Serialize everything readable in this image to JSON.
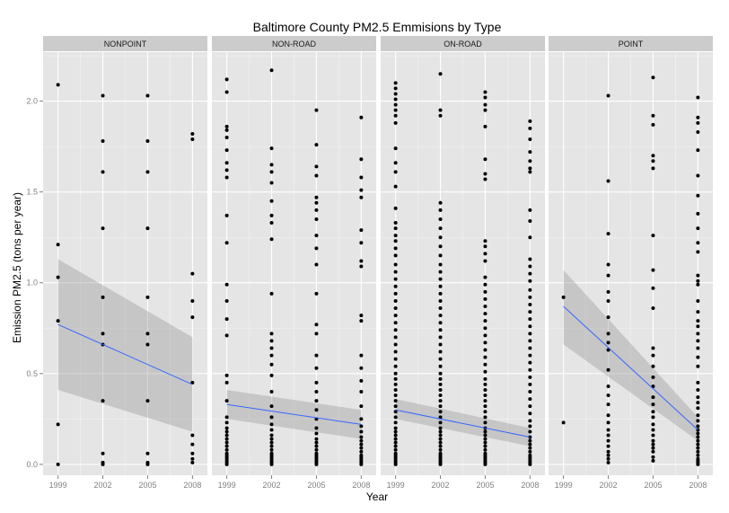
{
  "chart_data": {
    "type": "scatter",
    "title": "Baltimore County PM2.5 Emmisions by Type",
    "xlabel": "Year",
    "ylabel": "Emission PM2.5 (tons per year)",
    "x_ticks": [
      "1999",
      "2002",
      "2005",
      "2008"
    ],
    "y_ticks": [
      "0.0",
      "0.5",
      "1.0",
      "1.5",
      "2.0"
    ],
    "xlim": [
      1998,
      2009
    ],
    "ylim": [
      -0.06,
      2.27
    ],
    "grid": true,
    "colors": {
      "panel": "#e5e5e5",
      "grid": "#ffffff",
      "strip": "#cccccc",
      "point": "#000000",
      "trend": "#3366ff",
      "ribbon": "#999999"
    },
    "panels": [
      {
        "name": "NONPOINT",
        "points": [
          {
            "year": 1999,
            "values": [
              2.09,
              1.21,
              1.03,
              0.79,
              0.22,
              0.0
            ]
          },
          {
            "year": 2002,
            "values": [
              2.03,
              1.78,
              1.61,
              1.3,
              0.92,
              0.72,
              0.66,
              0.35,
              0.06,
              0.01,
              0.0
            ]
          },
          {
            "year": 2005,
            "values": [
              2.03,
              1.78,
              1.61,
              1.3,
              0.92,
              0.72,
              0.66,
              0.35,
              0.06,
              0.01,
              0.0
            ]
          },
          {
            "year": 2008,
            "values": [
              1.82,
              1.79,
              1.05,
              0.9,
              0.81,
              0.45,
              0.16,
              0.11,
              0.06,
              0.03,
              0.01
            ]
          }
        ],
        "trend": {
          "start": [
            1999,
            0.77
          ],
          "end": [
            2008,
            0.44
          ]
        },
        "band": {
          "start": [
            1999,
            0.41,
            1.13
          ],
          "end": [
            2008,
            0.18,
            0.7
          ]
        }
      },
      {
        "name": "NON-ROAD",
        "points": [
          {
            "year": 1999,
            "values": [
              2.12,
              2.05,
              1.86,
              1.84,
              1.8,
              1.73,
              1.66,
              1.62,
              1.58,
              1.37,
              1.22,
              0.99,
              0.9,
              0.8,
              0.71,
              0.49,
              0.45,
              0.35,
              0.26,
              0.23,
              0.2,
              0.18,
              0.16,
              0.14,
              0.12,
              0.1,
              0.08,
              0.06,
              0.05,
              0.04,
              0.03,
              0.02,
              0.01,
              0.0
            ]
          },
          {
            "year": 2002,
            "values": [
              2.17,
              1.74,
              1.65,
              1.61,
              1.55,
              1.45,
              1.37,
              1.33,
              1.24,
              0.94,
              0.72,
              0.68,
              0.64,
              0.6,
              0.55,
              0.49,
              0.4,
              0.32,
              0.26,
              0.22,
              0.19,
              0.16,
              0.14,
              0.12,
              0.1,
              0.08,
              0.06,
              0.05,
              0.04,
              0.03,
              0.02,
              0.01,
              0.0
            ]
          },
          {
            "year": 2005,
            "values": [
              1.95,
              1.76,
              1.64,
              1.59,
              1.47,
              1.44,
              1.4,
              1.35,
              1.26,
              1.19,
              1.1,
              0.94,
              0.77,
              0.72,
              0.6,
              0.53,
              0.45,
              0.4,
              0.35,
              0.3,
              0.25,
              0.2,
              0.17,
              0.14,
              0.12,
              0.1,
              0.08,
              0.06,
              0.05,
              0.04,
              0.03,
              0.02,
              0.01,
              0.0
            ]
          },
          {
            "year": 2008,
            "values": [
              1.91,
              1.68,
              1.58,
              1.51,
              1.47,
              1.29,
              1.22,
              1.12,
              1.09,
              0.82,
              0.79,
              0.6,
              0.53,
              0.46,
              0.4,
              0.32,
              0.25,
              0.21,
              0.18,
              0.15,
              0.13,
              0.11,
              0.09,
              0.07,
              0.05,
              0.04,
              0.03,
              0.02,
              0.01,
              0.0
            ]
          }
        ],
        "trend": {
          "start": [
            1999,
            0.33
          ],
          "end": [
            2008,
            0.22
          ]
        },
        "band": {
          "start": [
            1999,
            0.25,
            0.41
          ],
          "end": [
            2008,
            0.14,
            0.3
          ]
        }
      },
      {
        "name": "ON-ROAD",
        "points": [
          {
            "year": 1999,
            "values": [
              2.1,
              2.07,
              2.04,
              2.01,
              1.98,
              1.95,
              1.92,
              1.88,
              1.74,
              1.66,
              1.61,
              1.53,
              1.41,
              1.33,
              1.3,
              1.26,
              1.23,
              1.19,
              1.15,
              1.1,
              1.06,
              1.02,
              0.98,
              0.94,
              0.9,
              0.86,
              0.82,
              0.78,
              0.74,
              0.7,
              0.66,
              0.62,
              0.58,
              0.54,
              0.5,
              0.47,
              0.44,
              0.41,
              0.38,
              0.35,
              0.32,
              0.29,
              0.26,
              0.23,
              0.2,
              0.18,
              0.16,
              0.14,
              0.12,
              0.1,
              0.08,
              0.06,
              0.05,
              0.04,
              0.03,
              0.02,
              0.01,
              0.0
            ]
          },
          {
            "year": 2002,
            "values": [
              2.15,
              1.95,
              1.92,
              1.44,
              1.4,
              1.35,
              1.3,
              1.25,
              1.2,
              1.15,
              1.1,
              1.06,
              1.02,
              0.98,
              0.94,
              0.9,
              0.86,
              0.82,
              0.78,
              0.74,
              0.7,
              0.66,
              0.62,
              0.58,
              0.54,
              0.5,
              0.47,
              0.44,
              0.41,
              0.38,
              0.35,
              0.32,
              0.29,
              0.26,
              0.23,
              0.2,
              0.18,
              0.16,
              0.14,
              0.12,
              0.1,
              0.08,
              0.06,
              0.05,
              0.04,
              0.03,
              0.02,
              0.01,
              0.0
            ]
          },
          {
            "year": 2005,
            "values": [
              2.05,
              2.02,
              1.98,
              1.95,
              1.86,
              1.68,
              1.6,
              1.57,
              1.23,
              1.2,
              1.16,
              1.12,
              1.03,
              0.99,
              0.95,
              0.91,
              0.87,
              0.83,
              0.79,
              0.75,
              0.71,
              0.67,
              0.63,
              0.59,
              0.55,
              0.51,
              0.47,
              0.44,
              0.41,
              0.38,
              0.35,
              0.32,
              0.29,
              0.26,
              0.23,
              0.2,
              0.18,
              0.16,
              0.14,
              0.12,
              0.1,
              0.08,
              0.06,
              0.05,
              0.04,
              0.03,
              0.02,
              0.01,
              0.0
            ]
          },
          {
            "year": 2008,
            "values": [
              1.89,
              1.85,
              1.79,
              1.72,
              1.67,
              1.63,
              1.61,
              1.4,
              1.34,
              1.25,
              1.13,
              1.09,
              1.05,
              1.01,
              0.96,
              0.92,
              0.88,
              0.84,
              0.8,
              0.76,
              0.72,
              0.68,
              0.64,
              0.6,
              0.56,
              0.52,
              0.48,
              0.44,
              0.4,
              0.36,
              0.32,
              0.28,
              0.24,
              0.21,
              0.18,
              0.15,
              0.13,
              0.11,
              0.09,
              0.07,
              0.05,
              0.04,
              0.03,
              0.02,
              0.01,
              0.0
            ]
          }
        ],
        "trend": {
          "start": [
            1999,
            0.3
          ],
          "end": [
            2008,
            0.15
          ]
        },
        "band": {
          "start": [
            1999,
            0.25,
            0.36
          ],
          "end": [
            2008,
            0.1,
            0.2
          ]
        }
      },
      {
        "name": "POINT",
        "points": [
          {
            "year": 1999,
            "values": [
              0.92,
              0.23
            ]
          },
          {
            "year": 2002,
            "values": [
              2.03,
              1.56,
              1.27,
              1.1,
              1.04,
              0.95,
              0.9,
              0.81,
              0.72,
              0.67,
              0.63,
              0.52,
              0.43,
              0.38,
              0.33,
              0.27,
              0.23,
              0.19,
              0.16,
              0.13,
              0.1,
              0.07,
              0.05,
              0.03,
              0.01
            ]
          },
          {
            "year": 2005,
            "values": [
              2.13,
              1.92,
              1.87,
              1.7,
              1.67,
              1.63,
              1.26,
              1.07,
              0.97,
              0.86,
              0.64,
              0.6,
              0.54,
              0.48,
              0.43,
              0.37,
              0.33,
              0.29,
              0.26,
              0.22,
              0.19,
              0.16,
              0.13,
              0.11,
              0.09,
              0.07,
              0.04,
              0.02
            ]
          },
          {
            "year": 2008,
            "values": [
              2.02,
              1.91,
              1.88,
              1.83,
              1.73,
              1.59,
              1.48,
              1.38,
              1.3,
              1.22,
              1.17,
              1.04,
              1.01,
              0.99,
              0.9,
              0.84,
              0.79,
              0.76,
              0.72,
              0.68,
              0.64,
              0.59,
              0.54,
              0.45,
              0.41,
              0.37,
              0.34,
              0.31,
              0.27,
              0.24,
              0.21,
              0.19,
              0.17,
              0.15,
              0.13,
              0.11,
              0.09,
              0.07,
              0.05,
              0.03,
              0.02,
              0.01,
              0.0
            ]
          }
        ],
        "trend": {
          "start": [
            1999,
            0.87
          ],
          "end": [
            2008,
            0.19
          ]
        },
        "band": {
          "start": [
            1999,
            0.66,
            1.07
          ],
          "end": [
            2008,
            0.13,
            0.26
          ]
        }
      }
    ]
  }
}
